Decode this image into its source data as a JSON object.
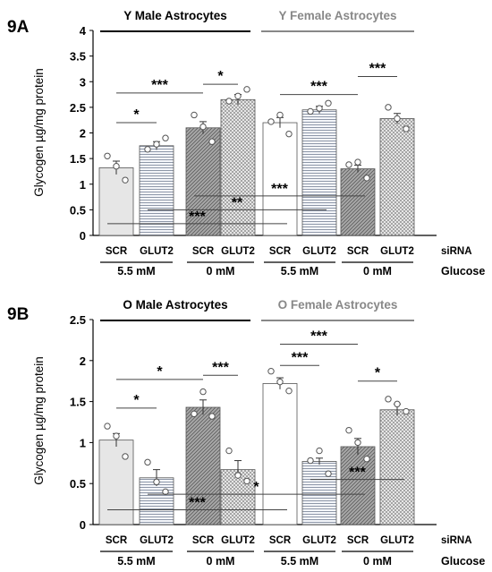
{
  "chart_data": [
    {
      "type": "bar",
      "panel_label": "9A",
      "ylabel": "Glycogen µg/mg protein",
      "ylim": [
        0,
        4
      ],
      "yticks": [
        "0",
        "0.5",
        "1",
        "1.5",
        "2",
        "2.5",
        "3",
        "3.5",
        "4"
      ],
      "groups": [
        {
          "title": "Y  Male Astrocytes",
          "color": "#000000"
        },
        {
          "title": "Y  Female Astrocytes",
          "color": "#888888"
        }
      ],
      "categories": [
        "SCR",
        "GLUT2",
        "SCR",
        "GLUT2",
        "SCR",
        "GLUT2",
        "SCR",
        "GLUT2"
      ],
      "values": [
        1.32,
        1.75,
        2.1,
        2.65,
        2.2,
        2.45,
        1.3,
        2.28
      ],
      "errors": [
        0.13,
        0.08,
        0.12,
        0.1,
        0.1,
        0.07,
        0.07,
        0.1
      ],
      "points": [
        [
          1.55,
          1.35,
          1.08
        ],
        [
          1.68,
          1.78,
          1.9
        ],
        [
          2.35,
          2.12,
          1.83
        ],
        [
          2.62,
          2.72,
          2.85
        ],
        [
          2.22,
          2.35,
          1.98
        ],
        [
          2.42,
          2.48,
          2.58
        ],
        [
          1.38,
          1.43,
          1.12
        ],
        [
          2.5,
          2.28,
          2.08
        ]
      ],
      "fills": [
        "#e6e6e6",
        "hstripe",
        "diagdark",
        "crosshatch",
        "#ffffff",
        "hstripe",
        "diagdark",
        "crosshatch"
      ],
      "sig_inside": [
        {
          "label": "*",
          "from": 0,
          "to": 1,
          "y": 2.2
        },
        {
          "label": "***",
          "from": 0,
          "to": 2,
          "y": 2.78
        },
        {
          "label": "*",
          "from": 2,
          "to": 3,
          "y": 2.95
        },
        {
          "label": "***",
          "from": 4,
          "to": 6,
          "y": 2.75
        },
        {
          "label": "***",
          "from": 6,
          "to": 7,
          "y": 3.1
        }
      ],
      "sig_bottom": [
        {
          "label": "***",
          "from": 2,
          "to": 6,
          "y": 0.77
        },
        {
          "label": "**",
          "from": 1,
          "to": 5,
          "y": 0.5
        },
        {
          "label": "***",
          "from": 0,
          "to": 4,
          "y": 0.23
        }
      ],
      "sirna_label": "siRNA",
      "glucose_levels": [
        "5.5 mM",
        "0 mM",
        "5.5 mM",
        "0 mM"
      ],
      "glucose_label": "Glucose"
    },
    {
      "type": "bar",
      "panel_label": "9B",
      "ylabel": "Glycogen µg/mg protein",
      "ylim": [
        0,
        2.5
      ],
      "yticks": [
        "0",
        "0.5",
        "1",
        "1.5",
        "2",
        "2.5"
      ],
      "groups": [
        {
          "title": "O  Male Astrocytes",
          "color": "#000000"
        },
        {
          "title": "O  Female Astrocytes",
          "color": "#888888"
        }
      ],
      "categories": [
        "SCR",
        "GLUT2",
        "SCR",
        "GLUT2",
        "SCR",
        "GLUT2",
        "SCR",
        "GLUT2"
      ],
      "values": [
        1.03,
        0.57,
        1.43,
        0.67,
        1.72,
        0.77,
        0.95,
        1.4
      ],
      "errors": [
        0.08,
        0.1,
        0.09,
        0.11,
        0.07,
        0.04,
        0.1,
        0.07
      ],
      "points": [
        [
          1.2,
          1.08,
          0.83
        ],
        [
          0.76,
          0.52,
          0.4
        ],
        [
          1.35,
          1.62,
          1.32
        ],
        [
          0.9,
          0.6,
          0.53
        ],
        [
          1.87,
          1.74,
          1.63
        ],
        [
          0.78,
          0.9,
          0.62
        ],
        [
          1.15,
          1.0,
          0.8
        ],
        [
          1.53,
          1.47,
          1.38
        ]
      ],
      "fills": [
        "#e6e6e6",
        "hstripe",
        "diagdark",
        "crosshatch",
        "#ffffff",
        "hstripe",
        "diagdark",
        "crosshatch"
      ],
      "sig_inside": [
        {
          "label": "*",
          "from": 0,
          "to": 1,
          "y": 1.42
        },
        {
          "label": "*",
          "from": 0,
          "to": 2,
          "y": 1.77
        },
        {
          "label": "***",
          "from": 2,
          "to": 3,
          "y": 1.82
        },
        {
          "label": "***",
          "from": 4,
          "to": 5,
          "y": 1.94
        },
        {
          "label": "***",
          "from": 4,
          "to": 6,
          "y": 2.2
        },
        {
          "label": "*",
          "from": 6,
          "to": 7,
          "y": 1.75
        }
      ],
      "sig_bottom": [
        {
          "label": "***",
          "from": 5,
          "to": 7,
          "y": 0.55
        },
        {
          "label": "*",
          "from": 1,
          "to": 6,
          "y": 0.37
        },
        {
          "label": "***",
          "from": 0,
          "to": 4,
          "y": 0.18
        }
      ],
      "sirna_label": "siRNA",
      "glucose_levels": [
        "5.5 mM",
        "0 mM",
        "5.5 mM",
        "0 mM"
      ],
      "glucose_label": "Glucose"
    }
  ]
}
